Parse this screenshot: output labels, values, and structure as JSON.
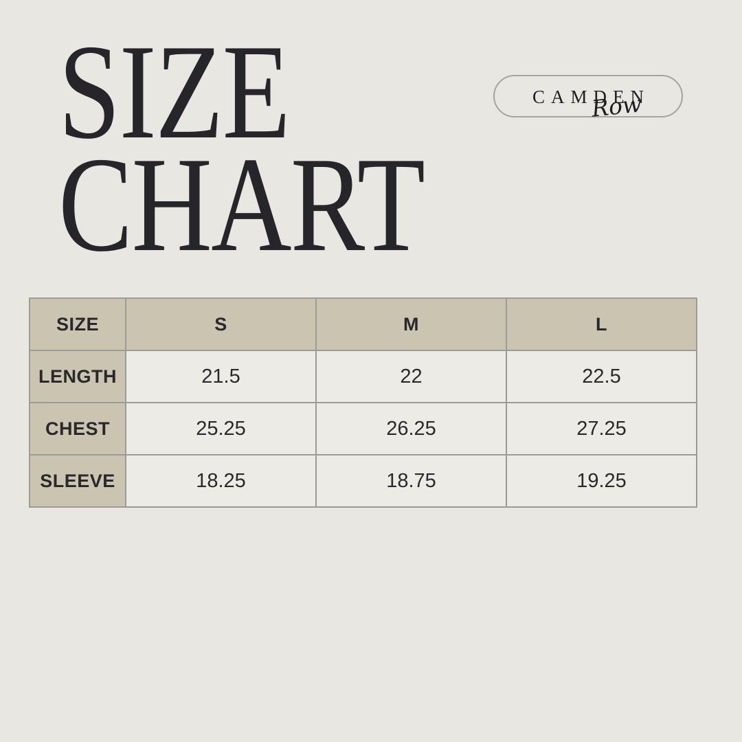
{
  "page": {
    "background": "#e9e7e2"
  },
  "title": {
    "line1": "SIZE",
    "line2": "CHART",
    "color": "#26252a"
  },
  "logo": {
    "brand": "CAMDEN",
    "script": "Row",
    "border_color": "#a3a3a0"
  },
  "table": {
    "header": [
      "SIZE",
      "S",
      "M",
      "L"
    ],
    "rows": [
      {
        "label": "LENGTH",
        "values": [
          "21.5",
          "22",
          "22.5"
        ]
      },
      {
        "label": "CHEST",
        "values": [
          "25.25",
          "26.25",
          "27.25"
        ]
      },
      {
        "label": "SLEEVE",
        "values": [
          "18.25",
          "18.75",
          "19.25"
        ]
      }
    ],
    "colors": {
      "header_bg": "#cac4b1",
      "cell_bg": "#ecebe6",
      "border": "#9b9b98",
      "text": "#29292b"
    }
  },
  "chart_data": {
    "type": "table",
    "title": "SIZE CHART",
    "columns": [
      "SIZE",
      "S",
      "M",
      "L"
    ],
    "rows": [
      [
        "LENGTH",
        21.5,
        22,
        22.5
      ],
      [
        "CHEST",
        25.25,
        26.25,
        27.25
      ],
      [
        "SLEEVE",
        18.25,
        18.75,
        19.25
      ]
    ]
  }
}
